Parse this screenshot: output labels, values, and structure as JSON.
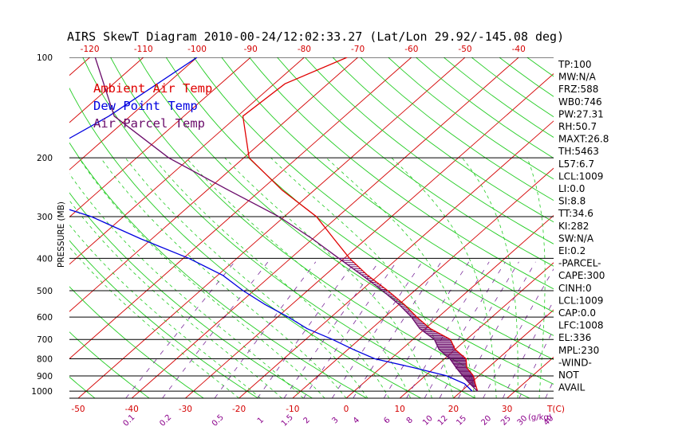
{
  "chart_data": {
    "type": "line",
    "title": "AIRS SkewT Diagram 2010-00-24/12:02:33.27 (Lat/Lon 29.92/-145.08 deg)",
    "ylabel": "PRESSURE (MB)",
    "y_scale": "log",
    "ylim": [
      1050,
      100
    ],
    "grid": true,
    "pressure_ticks": [
      "100",
      "200",
      "300",
      "400",
      "500",
      "600",
      "700",
      "800",
      "900",
      "1000"
    ],
    "pressure_values": [
      100,
      200,
      300,
      400,
      500,
      600,
      700,
      800,
      900,
      1000
    ],
    "top_temp_ticks": [
      "-120",
      "-110",
      "-100",
      "-90",
      "-80",
      "-70",
      "-60",
      "-50",
      "-40"
    ],
    "top_temp_values": [
      -120,
      -110,
      -100,
      -90,
      -80,
      -70,
      -60,
      -50,
      -40
    ],
    "bottom_temp_ticks": [
      "-50",
      "-40",
      "-30",
      "-20",
      "-10",
      "0",
      "10",
      "20",
      "30"
    ],
    "bottom_temp_values": [
      -50,
      -40,
      -30,
      -20,
      -10,
      0,
      10,
      20,
      30
    ],
    "bottom_axis_unit": "T(C)",
    "mixing_ratio_labels": [
      "0.1",
      "0.2",
      "0.5",
      "1",
      "1.5",
      "2",
      "3",
      "4",
      "6",
      "8",
      "10",
      "12",
      "15",
      "20",
      "25",
      "30",
      "40"
    ],
    "mixing_ratio_unit": "(g/kg)",
    "legend": [
      {
        "label": "Ambient Air Temp",
        "color": "#e00000"
      },
      {
        "label": "Dew Point Temp",
        "color": "#0000e0"
      },
      {
        "label": "Air Parcel Temp",
        "color": "#6a0b6a"
      }
    ],
    "series": [
      {
        "name": "Ambient Air Temp",
        "color": "#e00000",
        "points": [
          [
            100,
            -72
          ],
          [
            120,
            -78
          ],
          [
            150,
            -79
          ],
          [
            200,
            -69
          ],
          [
            250,
            -56
          ],
          [
            300,
            -44
          ],
          [
            350,
            -36
          ],
          [
            400,
            -29
          ],
          [
            450,
            -22
          ],
          [
            500,
            -15
          ],
          [
            550,
            -9
          ],
          [
            600,
            -4
          ],
          [
            650,
            1
          ],
          [
            700,
            7
          ],
          [
            750,
            10
          ],
          [
            800,
            14
          ],
          [
            850,
            16
          ],
          [
            900,
            19
          ],
          [
            950,
            21
          ],
          [
            1000,
            23
          ]
        ]
      },
      {
        "name": "Dew Point Temp",
        "color": "#0000e0",
        "points": [
          [
            100,
            -100
          ],
          [
            150,
            -104
          ],
          [
            200,
            -109
          ],
          [
            250,
            -107
          ],
          [
            300,
            -86
          ],
          [
            350,
            -72
          ],
          [
            400,
            -59
          ],
          [
            450,
            -49
          ],
          [
            500,
            -42
          ],
          [
            550,
            -35
          ],
          [
            600,
            -28
          ],
          [
            650,
            -22
          ],
          [
            700,
            -15
          ],
          [
            750,
            -9
          ],
          [
            800,
            -3
          ],
          [
            850,
            6
          ],
          [
            900,
            14
          ],
          [
            950,
            19
          ],
          [
            1000,
            22
          ]
        ]
      },
      {
        "name": "Air Parcel Temp",
        "color": "#6a0b6a",
        "points": [
          [
            100,
            -119
          ],
          [
            150,
            -103
          ],
          [
            200,
            -84
          ],
          [
            250,
            -66
          ],
          [
            300,
            -51
          ],
          [
            350,
            -40
          ],
          [
            400,
            -31
          ],
          [
            450,
            -23
          ],
          [
            500,
            -16
          ],
          [
            550,
            -10
          ],
          [
            600,
            -5
          ],
          [
            650,
            -1
          ],
          [
            700,
            4
          ],
          [
            750,
            7
          ],
          [
            800,
            11
          ],
          [
            850,
            14
          ],
          [
            900,
            17
          ],
          [
            950,
            20
          ],
          [
            1000,
            23
          ]
        ]
      }
    ],
    "parameters": [
      "TP:100",
      "MW:N/A",
      "FRZ:588",
      "WB0:746",
      "PW:27.31",
      "RH:50.7",
      "MAXT:26.8",
      "TH:5463",
      "L57:6.7",
      "LCL:1009",
      "LI:0.0",
      "SI:8.8",
      "TT:34.6",
      "KI:282",
      "SW:N/A",
      "EI:0.2",
      "-PARCEL-",
      "CAPE:300",
      "CINH:0",
      "LCL:1009",
      "CAP:0.0",
      "LFC:1008",
      "EL:336",
      "MPL:230",
      "-WIND-",
      "NOT",
      "AVAIL"
    ]
  }
}
